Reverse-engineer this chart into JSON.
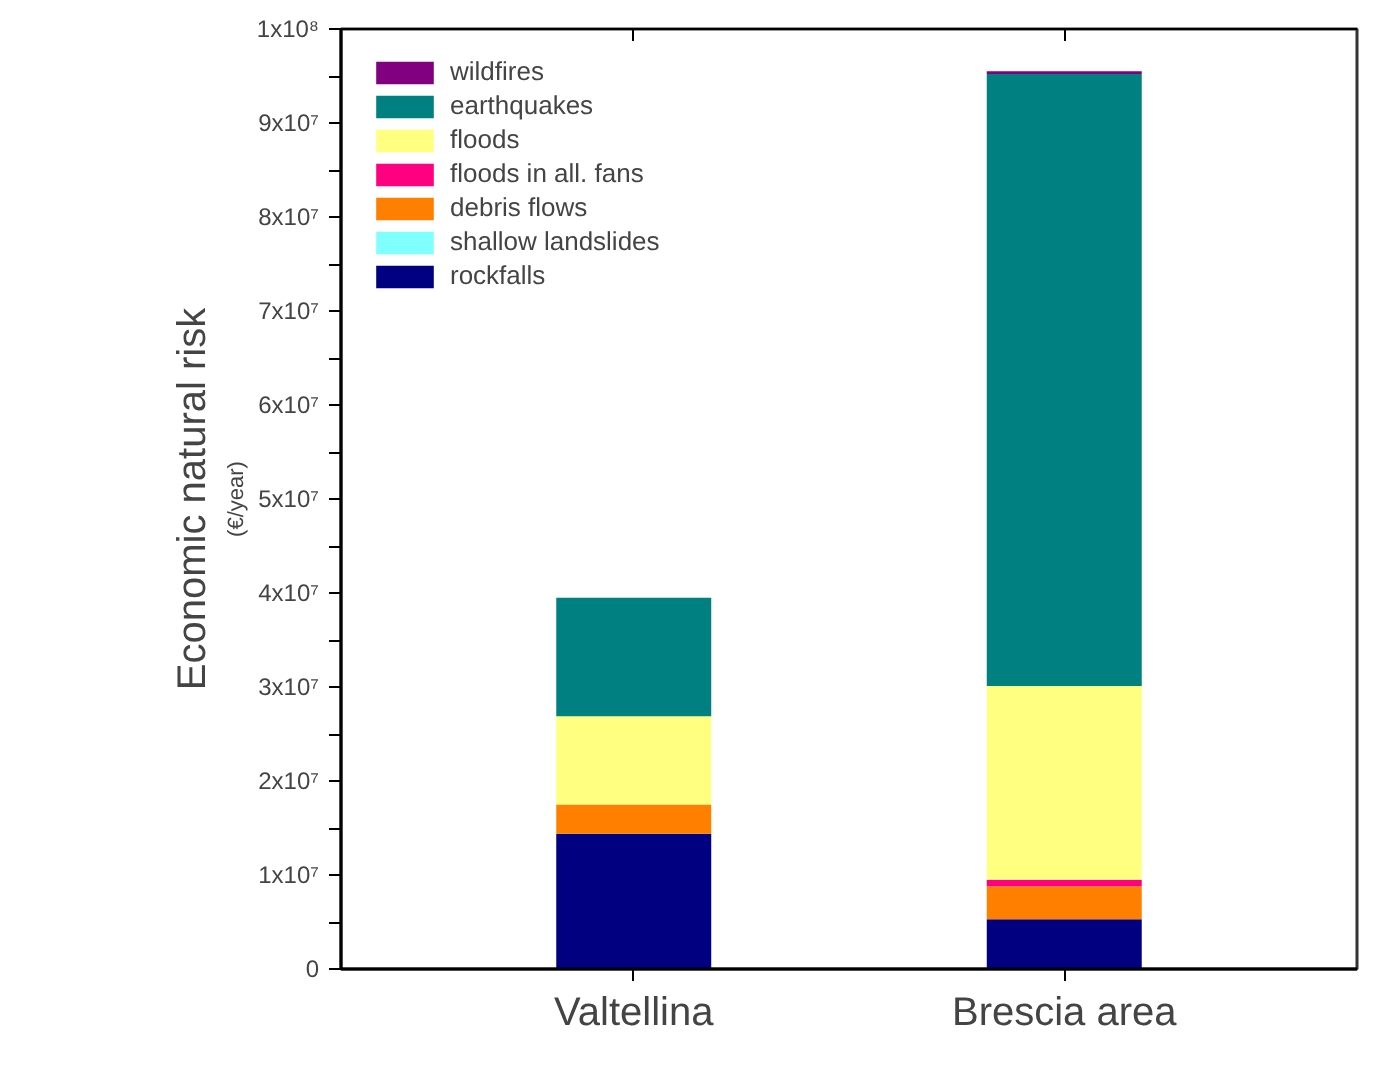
{
  "chart_data": {
    "type": "bar",
    "stacked": true,
    "ylabel": "Economic natural risk",
    "annotations": [
      "(€/year)"
    ],
    "categories": [
      "Valtellina",
      "Brescia area"
    ],
    "series": [
      {
        "name": "rockfalls",
        "color": "#000080",
        "values": [
          14400000,
          5300000
        ]
      },
      {
        "name": "shallow landslides",
        "color": "#80ffff",
        "values": [
          0,
          0
        ]
      },
      {
        "name": "debris flows",
        "color": "#ff8000",
        "values": [
          3100000,
          3500000
        ]
      },
      {
        "name": "floods in all. fans",
        "color": "#ff0080",
        "values": [
          0,
          700000
        ]
      },
      {
        "name": "floods",
        "color": "#ffff80",
        "values": [
          9400000,
          20600000
        ]
      },
      {
        "name": "earthquakes",
        "color": "#008080",
        "values": [
          12600000,
          65100000
        ]
      },
      {
        "name": "wildfires",
        "color": "#800080",
        "values": [
          0,
          300000
        ]
      }
    ],
    "ylim": [
      0,
      100000000
    ],
    "yticks": [
      0,
      {
        "value": 5000000,
        "label": null
      },
      {
        "value": 10000000,
        "label": "1x10⁷"
      },
      {
        "value": 15000000,
        "label": null
      },
      {
        "value": 20000000,
        "label": "2x10⁷"
      },
      {
        "value": 25000000,
        "label": null
      },
      {
        "value": 30000000,
        "label": "3x10⁷"
      },
      {
        "value": 35000000,
        "label": null
      },
      {
        "value": 40000000,
        "label": "4x10⁷"
      },
      {
        "value": 45000000,
        "label": null
      },
      {
        "value": 50000000,
        "label": "5x10⁷"
      },
      {
        "value": 55000000,
        "label": null
      },
      {
        "value": 60000000,
        "label": "6x10⁷"
      },
      {
        "value": 65000000,
        "label": null
      },
      {
        "value": 70000000,
        "label": "7x10⁷"
      },
      {
        "value": 75000000,
        "label": null
      },
      {
        "value": 80000000,
        "label": "8x10⁷"
      },
      {
        "value": 85000000,
        "label": null
      },
      {
        "value": 90000000,
        "label": "9x10⁷"
      },
      {
        "value": 95000000,
        "label": null
      },
      {
        "value": 100000000,
        "label": "1x10⁸"
      }
    ],
    "grid": false,
    "legend": "top left"
  }
}
